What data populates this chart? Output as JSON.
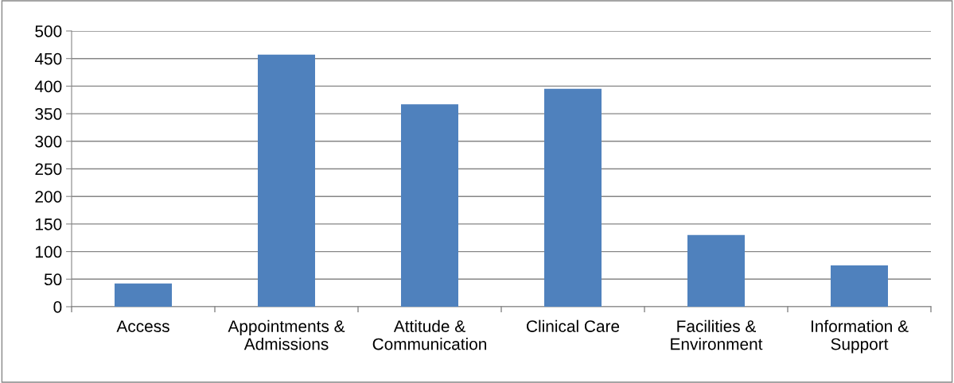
{
  "chart_data": {
    "type": "bar",
    "categories": [
      "Access",
      "Appointments &\nAdmissions",
      "Attitude &\nCommunication",
      "Clinical Care",
      "Facilities &\nEnvironment",
      "Information &\nSupport"
    ],
    "values": [
      42,
      457,
      367,
      395,
      130,
      75
    ],
    "color": "#4f81bd",
    "ylim": [
      0,
      500
    ],
    "yticks": [
      0,
      50,
      100,
      150,
      200,
      250,
      300,
      350,
      400,
      450,
      500
    ],
    "grid": "y",
    "legend": false
  }
}
